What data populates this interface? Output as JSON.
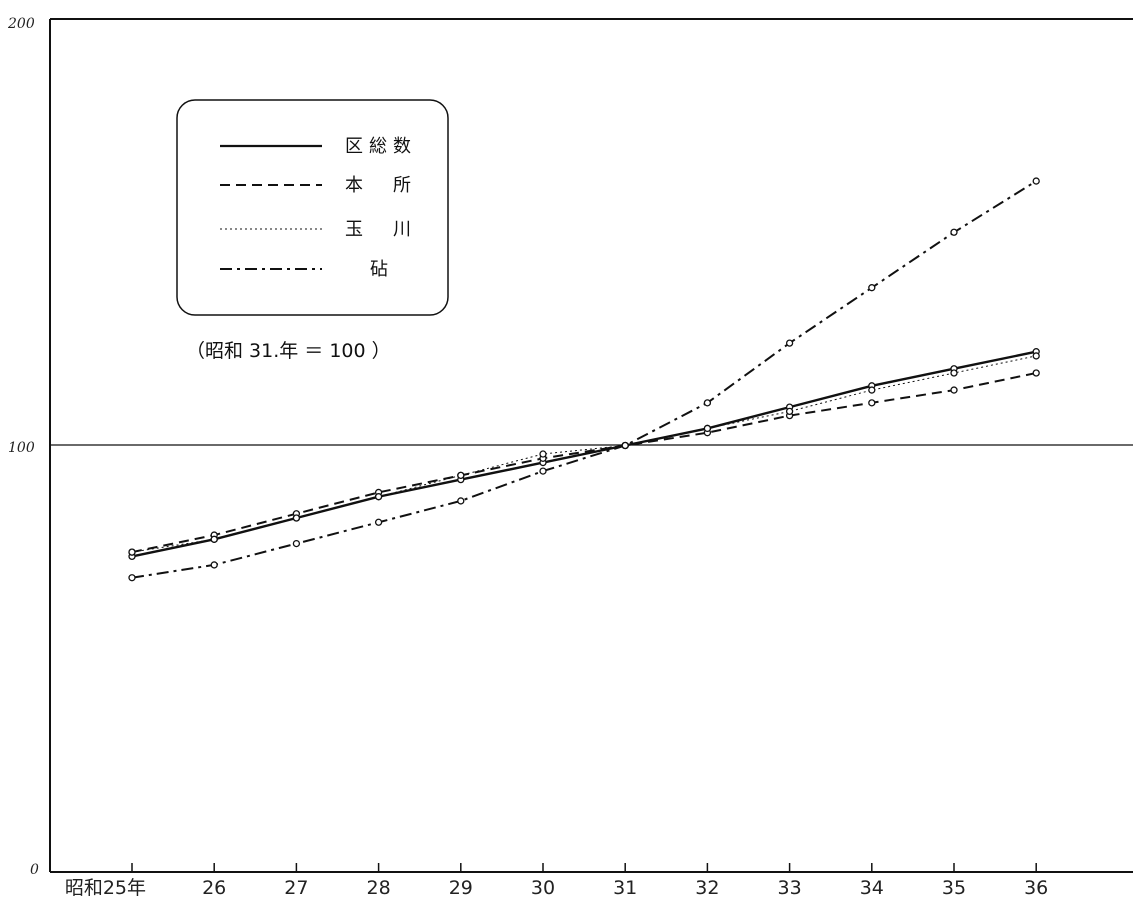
{
  "chart_data": {
    "type": "line",
    "categories": [
      "昭和25年",
      "26",
      "27",
      "28",
      "29",
      "30",
      "31",
      "32",
      "33",
      "34",
      "35",
      "36"
    ],
    "ylim": [
      0,
      200
    ],
    "yticks": [
      "0",
      "100",
      "200"
    ],
    "grid": "horizontal line at 100",
    "legend_position": "top-left",
    "note": "（昭和 31.年 ＝ 100 ）",
    "series": [
      {
        "name": "区総数",
        "style": "solid",
        "values": [
          74,
          78,
          83,
          88,
          92,
          96,
          100,
          104,
          109,
          114,
          118,
          122
        ]
      },
      {
        "name": "本　所",
        "style": "dashed",
        "values": [
          75,
          79,
          84,
          89,
          93,
          97,
          100,
          103,
          107,
          110,
          113,
          117
        ]
      },
      {
        "name": "玉　川",
        "style": "dotted",
        "values": [
          75,
          78,
          83,
          88,
          93,
          98,
          100,
          104,
          108,
          113,
          117,
          121
        ]
      },
      {
        "name": "砧",
        "style": "dashdot",
        "values": [
          69,
          72,
          77,
          82,
          87,
          94,
          100,
          110,
          124,
          137,
          150,
          162
        ]
      }
    ]
  }
}
